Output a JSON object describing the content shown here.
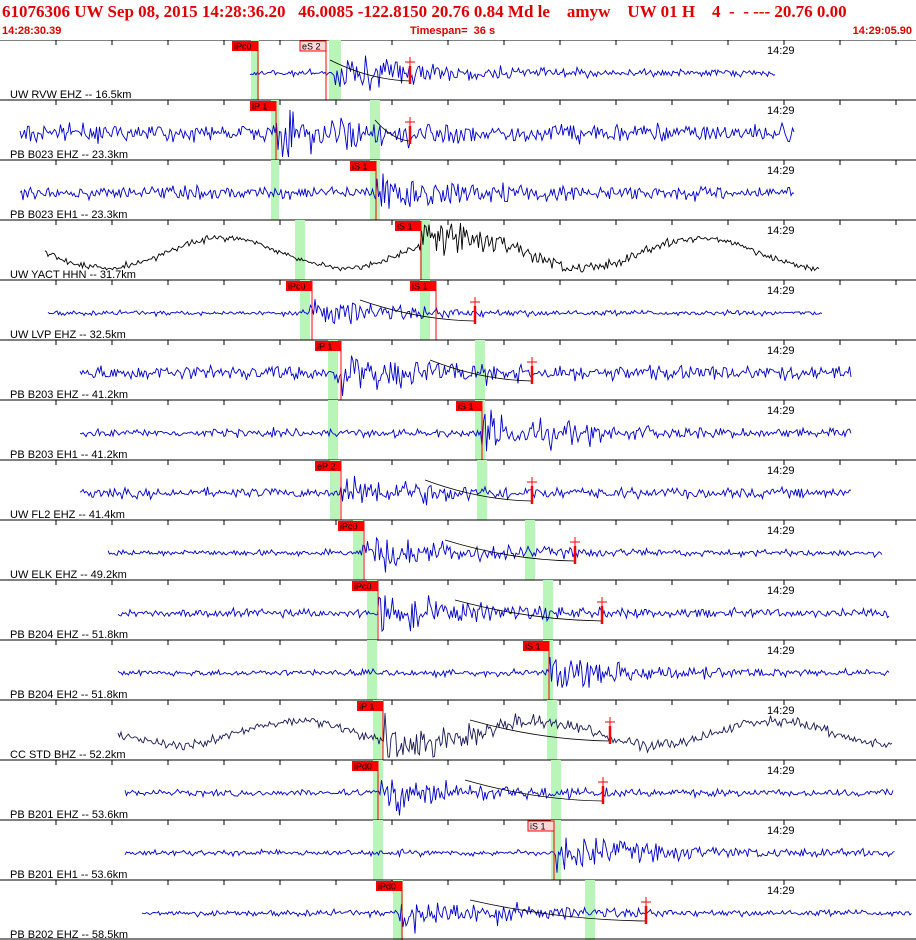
{
  "header": {
    "title": "61076306 UW Sep 08, 2015 14:28:36.20   46.0085 -122.8150 20.76 0.84 Md le    amyw    UW 01 H    4  -  - --- 20.76 0.00",
    "start_time": "14:28:30.39",
    "timespan": "Timespan=  36 s",
    "end_time": "14:29:05.90"
  },
  "colors": {
    "header_text": "#e00000",
    "trace_default": "#0000cc",
    "trace_broadband": "#000000",
    "trace_ccstd": "#1a1a5a",
    "pick_bar": "#b9f5b9",
    "pick_tag": "#ff0000",
    "pick_tag_light": "#ffd7d7",
    "grid": "#000000"
  },
  "minute_label": "14:29",
  "channels": [
    {
      "label": "UW RVW EHZ -- 16.5km",
      "color": "blue",
      "picks": [
        {
          "tag": "iPc0",
          "light": false
        },
        {
          "tag": "eS 2",
          "light": true
        }
      ]
    },
    {
      "label": "PB B023 EHZ -- 23.3km",
      "color": "blue",
      "picks": [
        {
          "tag": "iP 1",
          "light": false
        }
      ]
    },
    {
      "label": "PB B023 EH1 -- 23.3km",
      "color": "blue",
      "picks": [
        {
          "tag": "iS 1",
          "light": false
        }
      ]
    },
    {
      "label": "UW YACT HHN -- 31.7km",
      "color": "black",
      "picks": [
        {
          "tag": "iS 1",
          "light": false
        }
      ]
    },
    {
      "label": "UW LVP EHZ -- 32.5km",
      "color": "blue",
      "picks": [
        {
          "tag": "iPc0",
          "light": false
        },
        {
          "tag": "iS 1",
          "light": false
        }
      ]
    },
    {
      "label": "PB B203 EHZ -- 41.2km",
      "color": "blue",
      "picks": [
        {
          "tag": "iP 1",
          "light": false
        }
      ]
    },
    {
      "label": "PB B203 EH1 -- 41.2km",
      "color": "blue",
      "picks": [
        {
          "tag": "iS 1",
          "light": false
        }
      ]
    },
    {
      "label": "UW FL2 EHZ -- 41.4km",
      "color": "blue",
      "picks": [
        {
          "tag": "eP 2",
          "light": false
        }
      ]
    },
    {
      "label": "UW ELK EHZ -- 49.2km",
      "color": "blue",
      "picks": [
        {
          "tag": "iPc0",
          "light": false
        }
      ]
    },
    {
      "label": "PB B204 EHZ -- 51.8km",
      "color": "blue",
      "picks": [
        {
          "tag": "iPc0",
          "light": false
        }
      ]
    },
    {
      "label": "PB B204 EH2 -- 51.8km",
      "color": "blue",
      "picks": [
        {
          "tag": "iS 1",
          "light": false
        }
      ]
    },
    {
      "label": "CC STD BHZ -- 52.2km",
      "color": "navy",
      "picks": [
        {
          "tag": "iP 1",
          "light": false
        }
      ]
    },
    {
      "label": "PB B201 EHZ -- 53.6km",
      "color": "blue",
      "picks": [
        {
          "tag": "iPd0",
          "light": false
        }
      ]
    },
    {
      "label": "PB B201 EH1 -- 53.6km",
      "color": "blue",
      "picks": [
        {
          "tag": "iS 1",
          "light": true
        }
      ]
    },
    {
      "label": "PB B202 EHZ -- 58.5km",
      "color": "blue",
      "picks": [
        {
          "tag": "iPd0",
          "light": false
        }
      ]
    }
  ]
}
